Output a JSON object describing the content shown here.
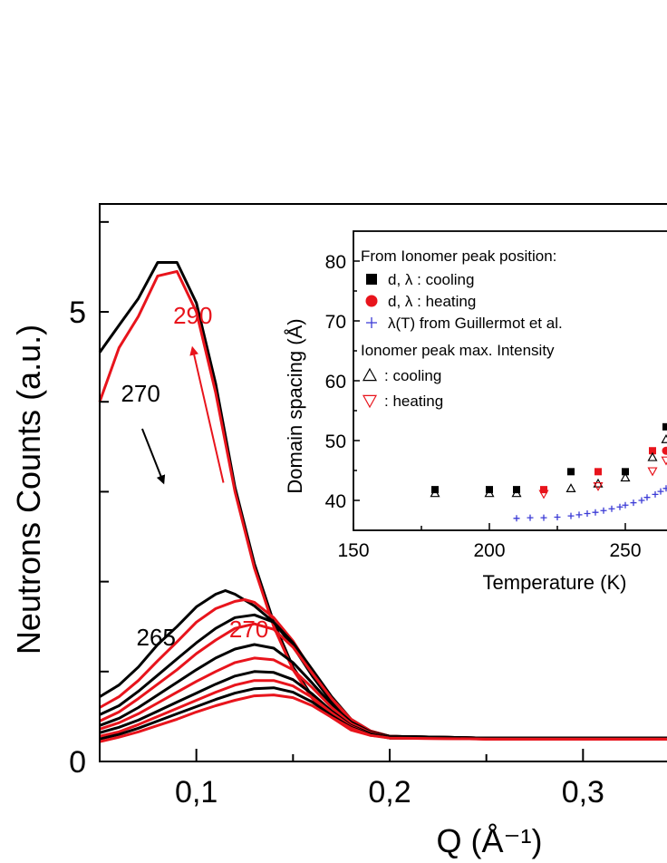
{
  "colors": {
    "black": "#000000",
    "red": "#e8141c",
    "blue": "#3b3bd6"
  },
  "chart_data": [
    {
      "type": "line",
      "xlabel": "Q (Å⁻¹)",
      "ylabel": "Neutrons Counts (a.u.)",
      "xlim": [
        0.05,
        0.35
      ],
      "ylim": [
        0,
        6.2
      ],
      "xticks": [
        {
          "value": 0.1,
          "label": "0,1"
        },
        {
          "value": 0.2,
          "label": "0,2"
        },
        {
          "value": 0.3,
          "label": "0,3"
        }
      ],
      "yticks": [
        {
          "value": 0,
          "label": "0"
        },
        {
          "value": 5,
          "label": "5"
        }
      ],
      "annotations": [
        {
          "text": "290",
          "color": "red",
          "x": 0.088,
          "y": 4.87
        },
        {
          "text": "270",
          "color": "black",
          "x": 0.061,
          "y": 4.0
        },
        {
          "text": "265",
          "color": "black",
          "x": 0.069,
          "y": 1.29
        },
        {
          "text": "270",
          "color": "red",
          "x": 0.117,
          "y": 1.38
        }
      ],
      "arrows": [
        {
          "color": "black",
          "from": [
            0.072,
            3.7
          ],
          "to": [
            0.083,
            3.1
          ]
        },
        {
          "color": "red",
          "from": [
            0.114,
            3.1
          ],
          "to": [
            0.098,
            4.6
          ]
        }
      ],
      "series": [
        {
          "color": "black",
          "x": [
            0.05,
            0.06,
            0.07,
            0.08,
            0.09,
            0.1,
            0.11,
            0.12,
            0.13,
            0.14,
            0.15,
            0.16,
            0.17,
            0.18,
            0.19,
            0.2,
            0.25,
            0.3,
            0.35
          ],
          "values": [
            4.55,
            4.85,
            5.15,
            5.55,
            5.55,
            5.1,
            4.2,
            3.05,
            2.2,
            1.55,
            1.05,
            0.72,
            0.5,
            0.36,
            0.3,
            0.28,
            0.26,
            0.26,
            0.26
          ]
        },
        {
          "color": "red",
          "x": [
            0.05,
            0.06,
            0.07,
            0.08,
            0.09,
            0.1,
            0.11,
            0.12,
            0.13,
            0.14,
            0.15,
            0.16,
            0.17,
            0.18,
            0.19,
            0.2,
            0.25,
            0.3,
            0.35
          ],
          "values": [
            4.0,
            4.6,
            4.95,
            5.4,
            5.45,
            5.0,
            4.1,
            3.0,
            2.15,
            1.5,
            1.02,
            0.7,
            0.49,
            0.35,
            0.29,
            0.27,
            0.25,
            0.25,
            0.25
          ]
        },
        {
          "color": "black",
          "x": [
            0.05,
            0.06,
            0.07,
            0.08,
            0.09,
            0.1,
            0.11,
            0.115,
            0.12,
            0.13,
            0.14,
            0.15,
            0.16,
            0.17,
            0.18,
            0.19,
            0.2,
            0.25,
            0.3,
            0.35
          ],
          "values": [
            0.72,
            0.85,
            1.05,
            1.3,
            1.5,
            1.72,
            1.86,
            1.9,
            1.86,
            1.73,
            1.55,
            1.28,
            0.95,
            0.66,
            0.45,
            0.33,
            0.28,
            0.26,
            0.26,
            0.26
          ]
        },
        {
          "color": "red",
          "x": [
            0.05,
            0.06,
            0.07,
            0.08,
            0.09,
            0.1,
            0.11,
            0.12,
            0.125,
            0.13,
            0.14,
            0.15,
            0.16,
            0.17,
            0.18,
            0.19,
            0.2,
            0.25,
            0.3,
            0.35
          ],
          "values": [
            0.6,
            0.72,
            0.9,
            1.12,
            1.33,
            1.55,
            1.7,
            1.78,
            1.8,
            1.77,
            1.6,
            1.34,
            1.0,
            0.7,
            0.46,
            0.33,
            0.28,
            0.26,
            0.25,
            0.25
          ]
        },
        {
          "color": "black",
          "x": [
            0.05,
            0.06,
            0.07,
            0.08,
            0.09,
            0.1,
            0.11,
            0.12,
            0.13,
            0.14,
            0.15,
            0.16,
            0.17,
            0.18,
            0.19,
            0.2,
            0.25,
            0.3,
            0.35
          ],
          "values": [
            0.52,
            0.62,
            0.78,
            0.96,
            1.14,
            1.32,
            1.48,
            1.6,
            1.63,
            1.55,
            1.32,
            1.02,
            0.72,
            0.47,
            0.34,
            0.28,
            0.26,
            0.26,
            0.26
          ]
        },
        {
          "color": "red",
          "x": [
            0.05,
            0.06,
            0.07,
            0.08,
            0.09,
            0.1,
            0.11,
            0.12,
            0.13,
            0.14,
            0.15,
            0.16,
            0.17,
            0.18,
            0.19,
            0.2,
            0.25,
            0.3,
            0.35
          ],
          "values": [
            0.45,
            0.55,
            0.7,
            0.86,
            1.02,
            1.2,
            1.35,
            1.48,
            1.53,
            1.47,
            1.27,
            0.98,
            0.7,
            0.47,
            0.34,
            0.28,
            0.25,
            0.25,
            0.25
          ]
        },
        {
          "color": "black",
          "x": [
            0.05,
            0.06,
            0.07,
            0.08,
            0.09,
            0.1,
            0.11,
            0.12,
            0.13,
            0.14,
            0.15,
            0.16,
            0.17,
            0.18,
            0.19,
            0.2,
            0.25,
            0.3,
            0.35
          ],
          "values": [
            0.4,
            0.48,
            0.6,
            0.74,
            0.88,
            1.02,
            1.15,
            1.25,
            1.3,
            1.26,
            1.1,
            0.87,
            0.63,
            0.44,
            0.33,
            0.28,
            0.26,
            0.26,
            0.26
          ]
        },
        {
          "color": "red",
          "x": [
            0.05,
            0.06,
            0.07,
            0.08,
            0.09,
            0.1,
            0.11,
            0.12,
            0.13,
            0.14,
            0.15,
            0.16,
            0.17,
            0.18,
            0.19,
            0.2,
            0.25,
            0.3,
            0.35
          ],
          "values": [
            0.36,
            0.43,
            0.53,
            0.65,
            0.77,
            0.89,
            1.0,
            1.1,
            1.15,
            1.13,
            1.02,
            0.82,
            0.6,
            0.42,
            0.32,
            0.27,
            0.25,
            0.25,
            0.25
          ]
        },
        {
          "color": "black",
          "x": [
            0.05,
            0.06,
            0.07,
            0.08,
            0.09,
            0.1,
            0.11,
            0.12,
            0.13,
            0.14,
            0.15,
            0.16,
            0.17,
            0.18,
            0.19,
            0.2,
            0.25,
            0.3,
            0.35
          ],
          "values": [
            0.32,
            0.38,
            0.46,
            0.56,
            0.66,
            0.76,
            0.86,
            0.95,
            1.0,
            0.99,
            0.91,
            0.75,
            0.56,
            0.4,
            0.31,
            0.27,
            0.26,
            0.26,
            0.26
          ]
        },
        {
          "color": "red",
          "x": [
            0.05,
            0.06,
            0.07,
            0.08,
            0.09,
            0.1,
            0.11,
            0.12,
            0.13,
            0.14,
            0.15,
            0.16,
            0.17,
            0.18,
            0.19,
            0.2,
            0.25,
            0.3,
            0.35
          ],
          "values": [
            0.28,
            0.33,
            0.41,
            0.5,
            0.59,
            0.68,
            0.77,
            0.85,
            0.9,
            0.9,
            0.84,
            0.71,
            0.54,
            0.39,
            0.3,
            0.26,
            0.25,
            0.25,
            0.25
          ]
        },
        {
          "color": "black",
          "x": [
            0.05,
            0.06,
            0.07,
            0.08,
            0.09,
            0.1,
            0.11,
            0.12,
            0.13,
            0.14,
            0.15,
            0.16,
            0.17,
            0.18,
            0.19,
            0.2,
            0.25,
            0.3,
            0.35
          ],
          "values": [
            0.25,
            0.3,
            0.37,
            0.45,
            0.53,
            0.61,
            0.69,
            0.76,
            0.81,
            0.82,
            0.77,
            0.66,
            0.51,
            0.38,
            0.3,
            0.26,
            0.26,
            0.26,
            0.26
          ]
        },
        {
          "color": "red",
          "x": [
            0.05,
            0.06,
            0.07,
            0.08,
            0.09,
            0.1,
            0.11,
            0.12,
            0.13,
            0.14,
            0.15,
            0.16,
            0.17,
            0.18,
            0.19,
            0.2,
            0.25,
            0.3,
            0.35
          ],
          "values": [
            0.22,
            0.27,
            0.33,
            0.4,
            0.47,
            0.55,
            0.62,
            0.68,
            0.73,
            0.74,
            0.71,
            0.62,
            0.49,
            0.37,
            0.29,
            0.26,
            0.25,
            0.25,
            0.25
          ]
        }
      ]
    },
    {
      "type": "scatter",
      "xlabel": "Temperature (K)",
      "ylabel": "Domain spacing (Å)",
      "xlim": [
        150,
        270
      ],
      "ylim": [
        35,
        85
      ],
      "xticks": [
        150,
        200,
        250
      ],
      "yticks": [
        40,
        50,
        60,
        70,
        80
      ],
      "legend": {
        "placement": "top",
        "header1": "From Ionomer peak position:",
        "header2": "Ionomer peak max. Intensity",
        "entries": [
          {
            "marker": "square",
            "color": "black",
            "text": "d, λ :  cooling"
          },
          {
            "marker": "circle",
            "color": "red",
            "text": "d, λ :  heating"
          },
          {
            "marker": "plus",
            "color": "blue",
            "text": "λ(T) from Guillermot et al."
          },
          {
            "marker": "triangle-up",
            "color": "black",
            "text": ": cooling"
          },
          {
            "marker": "triangle-down",
            "color": "red",
            "text": ": heating"
          }
        ]
      },
      "series": [
        {
          "marker": "square",
          "color": "black",
          "x": [
            180,
            200,
            210,
            230,
            250,
            265
          ],
          "values": [
            41.8,
            41.8,
            41.8,
            44.8,
            44.8,
            52.3
          ]
        },
        {
          "marker": "square",
          "color": "red",
          "x": [
            220,
            240,
            260
          ],
          "values": [
            41.8,
            44.8,
            48.3
          ]
        },
        {
          "marker": "circle",
          "color": "red",
          "x": [
            265
          ],
          "values": [
            48.3
          ]
        },
        {
          "marker": "triangle-up",
          "color": "black",
          "x": [
            180,
            200,
            210,
            230,
            240,
            250,
            260,
            265
          ],
          "values": [
            41.2,
            41.2,
            41.2,
            42.0,
            42.8,
            43.8,
            47.2,
            50.2
          ]
        },
        {
          "marker": "triangle-down",
          "color": "red",
          "x": [
            220,
            240,
            260,
            265
          ],
          "values": [
            41.1,
            42.4,
            44.9,
            46.7
          ]
        },
        {
          "marker": "plus",
          "color": "blue",
          "x": [
            210,
            215,
            220,
            225,
            230,
            233,
            236,
            239,
            242,
            245,
            248,
            250,
            253,
            256,
            258,
            261,
            263,
            265,
            267
          ],
          "values": [
            37.0,
            37.1,
            37.1,
            37.2,
            37.4,
            37.6,
            37.8,
            38.0,
            38.3,
            38.6,
            38.9,
            39.2,
            39.6,
            40.0,
            40.5,
            41.0,
            41.5,
            42.0,
            42.6
          ]
        }
      ]
    }
  ]
}
